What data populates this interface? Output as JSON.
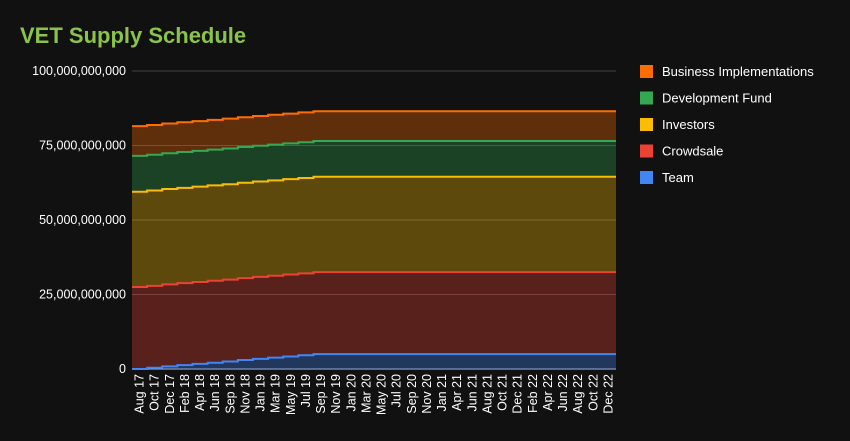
{
  "chart_data": {
    "type": "area",
    "stacked": true,
    "step": true,
    "title": "VET Supply Schedule",
    "title_color": "#8bc34a",
    "xlabel": "",
    "ylabel": "",
    "ylim": [
      0,
      100000000000
    ],
    "yticks": [
      "0",
      "25,000,000,000",
      "50,000,000,000",
      "75,000,000,000",
      "100,000,000,000"
    ],
    "x": [
      "Aug 17",
      "Oct 17",
      "Dec 17",
      "Feb 18",
      "Apr 18",
      "Jun 18",
      "Sep 18",
      "Nov 18",
      "Jan 19",
      "Mar 19",
      "May 19",
      "Jul 19",
      "Sep 19",
      "Nov 19",
      "Jan 20",
      "Mar 20",
      "May 20",
      "Jul 20",
      "Sep 20",
      "Nov 20",
      "Jan 21",
      "Apr 21",
      "Jun 21",
      "Aug 21",
      "Oct 21",
      "Dec 21",
      "Feb 22",
      "Apr 22",
      "Jun 22",
      "Aug 22",
      "Oct 22",
      "Dec 22"
    ],
    "series": [
      {
        "name": "Team",
        "color": "#4285f4",
        "values": [
          0,
          400000000,
          900000000,
          1300000000,
          1700000000,
          2100000000,
          2500000000,
          3000000000,
          3400000000,
          3800000000,
          4200000000,
          4600000000,
          5000000000,
          5000000000,
          5000000000,
          5000000000,
          5000000000,
          5000000000,
          5000000000,
          5000000000,
          5000000000,
          5000000000,
          5000000000,
          5000000000,
          5000000000,
          5000000000,
          5000000000,
          5000000000,
          5000000000,
          5000000000,
          5000000000,
          5000000000
        ]
      },
      {
        "name": "Crowdsale",
        "color": "#ea4335",
        "values": [
          27500000000,
          27500000000,
          27500000000,
          27500000000,
          27500000000,
          27500000000,
          27500000000,
          27500000000,
          27500000000,
          27500000000,
          27500000000,
          27500000000,
          27500000000,
          27500000000,
          27500000000,
          27500000000,
          27500000000,
          27500000000,
          27500000000,
          27500000000,
          27500000000,
          27500000000,
          27500000000,
          27500000000,
          27500000000,
          27500000000,
          27500000000,
          27500000000,
          27500000000,
          27500000000,
          27500000000,
          27500000000
        ]
      },
      {
        "name": "Investors",
        "color": "#fbbc04",
        "values": [
          32000000000,
          32000000000,
          32000000000,
          32000000000,
          32000000000,
          32000000000,
          32000000000,
          32000000000,
          32000000000,
          32000000000,
          32000000000,
          32000000000,
          32000000000,
          32000000000,
          32000000000,
          32000000000,
          32000000000,
          32000000000,
          32000000000,
          32000000000,
          32000000000,
          32000000000,
          32000000000,
          32000000000,
          32000000000,
          32000000000,
          32000000000,
          32000000000,
          32000000000,
          32000000000,
          32000000000,
          32000000000
        ]
      },
      {
        "name": "Development Fund",
        "color": "#34a853",
        "values": [
          12000000000,
          12000000000,
          12000000000,
          12000000000,
          12000000000,
          12000000000,
          12000000000,
          12000000000,
          12000000000,
          12000000000,
          12000000000,
          12000000000,
          12000000000,
          12000000000,
          12000000000,
          12000000000,
          12000000000,
          12000000000,
          12000000000,
          12000000000,
          12000000000,
          12000000000,
          12000000000,
          12000000000,
          12000000000,
          12000000000,
          12000000000,
          12000000000,
          12000000000,
          12000000000,
          12000000000,
          12000000000
        ]
      },
      {
        "name": "Business Implementations",
        "color": "#ff6d01",
        "values": [
          10000000000,
          10000000000,
          10000000000,
          10000000000,
          10000000000,
          10000000000,
          10000000000,
          10000000000,
          10000000000,
          10000000000,
          10000000000,
          10000000000,
          10000000000,
          10000000000,
          10000000000,
          10000000000,
          10000000000,
          10000000000,
          10000000000,
          10000000000,
          10000000000,
          10000000000,
          10000000000,
          10000000000,
          10000000000,
          10000000000,
          10000000000,
          10000000000,
          10000000000,
          10000000000,
          10000000000,
          10000000000
        ]
      }
    ],
    "legend": [
      "Business Implementations",
      "Development Fund",
      "Investors",
      "Crowdsale",
      "Team"
    ],
    "legend_position": "right",
    "grid": true
  }
}
